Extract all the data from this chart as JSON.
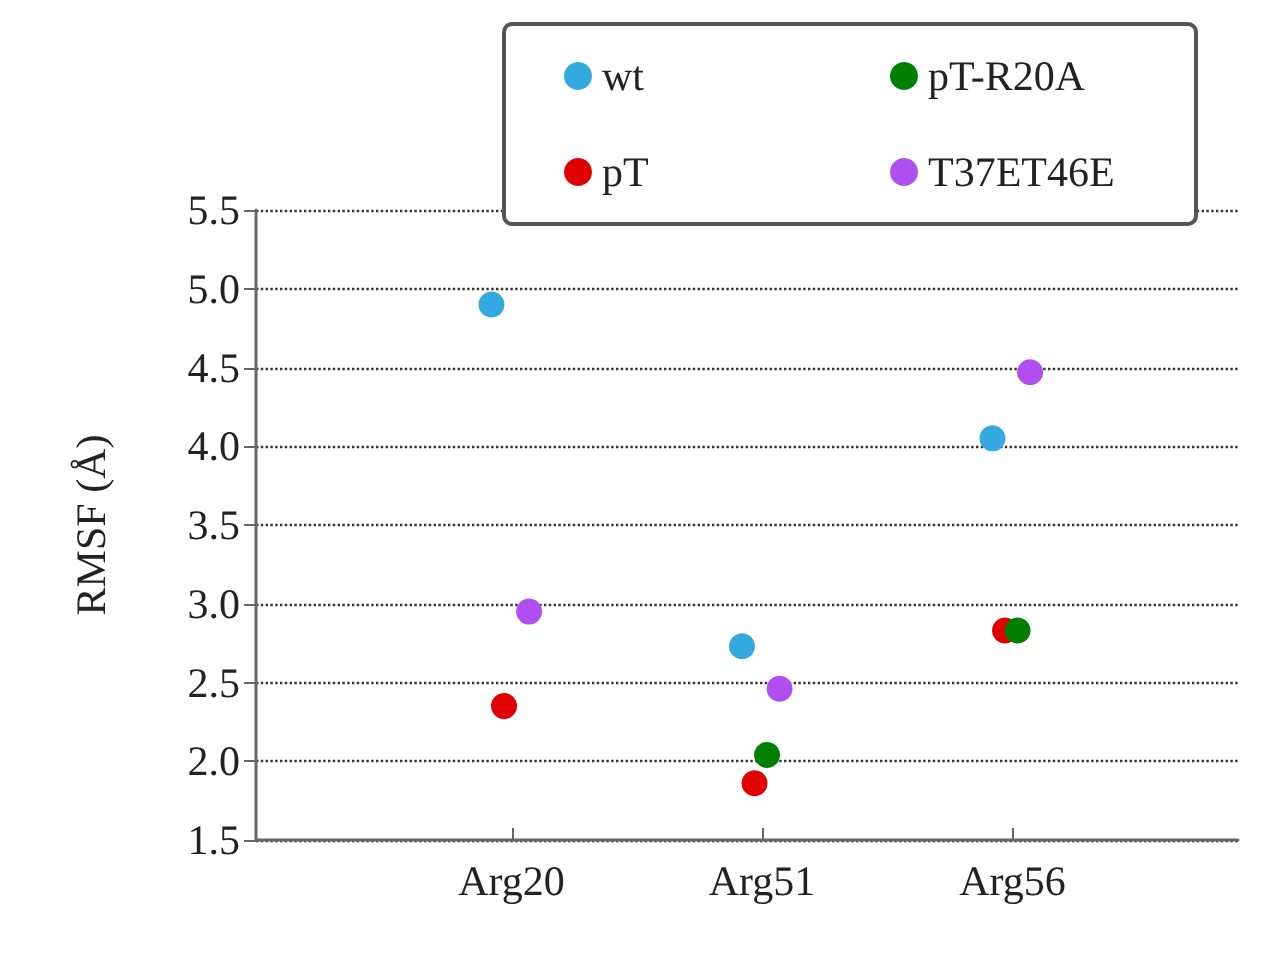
{
  "chart_data": {
    "type": "scatter",
    "ylabel": "RMSF (Å)",
    "categories": [
      "Arg20",
      "Arg51",
      "Arg56"
    ],
    "ylim": [
      1.5,
      5.5
    ],
    "yticks": [
      {
        "value": 1.5,
        "label": "1.5"
      },
      {
        "value": 2,
        "label": "2.0"
      },
      {
        "value": 2.5,
        "label": "2.5"
      },
      {
        "value": 3,
        "label": "3.0"
      },
      {
        "value": 3.5,
        "label": "3.5"
      },
      {
        "value": 4,
        "label": "4.0"
      },
      {
        "value": 4.5,
        "label": "4.5"
      },
      {
        "value": 5,
        "label": "5.0"
      },
      {
        "value": 5.5,
        "label": "5.5"
      }
    ],
    "grid": "y",
    "legend": "top right",
    "marker": "circle",
    "series": [
      {
        "name": "wt",
        "color": "#33a9e0",
        "values": [
          4.9,
          2.73,
          4.05
        ]
      },
      {
        "name": "pT",
        "color": "#e00000",
        "values": [
          2.35,
          1.86,
          2.83
        ]
      },
      {
        "name": "pT-R20A",
        "color": "#007f00",
        "values": [
          null,
          2.04,
          2.83
        ]
      },
      {
        "name": "T37ET46E",
        "color": "#b04ef0",
        "values": [
          2.95,
          2.46,
          4.47
        ]
      }
    ]
  }
}
